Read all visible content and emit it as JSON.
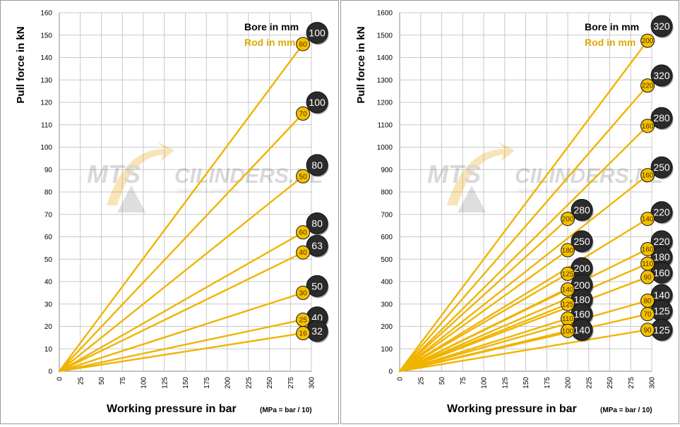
{
  "watermark": {
    "brand": "MTS",
    "name": "CILINDERS.NL",
    "tagline": "hydraulic & pneumatic"
  },
  "colors": {
    "line": "#f0b400",
    "rod_fill": "#f5c000",
    "rod_text": "#4a3200",
    "bore_fill": "#2b2b2b",
    "bore_text": "#ffffff",
    "grid": "#c8c8c8",
    "legend_rod": "#e0a800",
    "legend_bore": "#000000"
  },
  "chart_data": [
    {
      "type": "line",
      "ylabel": "Pull force in kN",
      "xlabel": "Working pressure in bar",
      "xnote": "(MPa = bar / 10)",
      "legend": {
        "bore": "Bore in mm",
        "rod": "Rod in mm"
      },
      "xlim": [
        0,
        300
      ],
      "ylim": [
        0,
        160
      ],
      "xticks": [
        0,
        25,
        50,
        75,
        100,
        125,
        150,
        175,
        200,
        225,
        250,
        275,
        300
      ],
      "yticks": [
        0,
        10,
        20,
        30,
        40,
        50,
        60,
        70,
        80,
        90,
        100,
        110,
        120,
        130,
        140,
        150,
        160
      ],
      "series": [
        {
          "bore": "100",
          "rod": "60",
          "x_end": 290,
          "y_end": 146,
          "bore_label_y": 151
        },
        {
          "bore": "100",
          "rod": "70",
          "x_end": 290,
          "y_end": 115,
          "bore_label_y": 120
        },
        {
          "bore": "80",
          "rod": "50",
          "x_end": 290,
          "y_end": 87,
          "bore_label_y": 92
        },
        {
          "bore": "80",
          "rod": "60",
          "x_end": 290,
          "y_end": 62,
          "bore_label_y": 66
        },
        {
          "bore": "63",
          "rod": "40",
          "x_end": 290,
          "y_end": 53,
          "bore_label_y": 56
        },
        {
          "bore": "50",
          "rod": "30",
          "x_end": 290,
          "y_end": 35,
          "bore_label_y": 38
        },
        {
          "bore": "40",
          "rod": "25",
          "x_end": 290,
          "y_end": 23,
          "bore_label_y": 24
        },
        {
          "bore": "32",
          "rod": "16",
          "x_end": 290,
          "y_end": 17,
          "bore_label_y": 18
        }
      ]
    },
    {
      "type": "line",
      "ylabel": "Pull force in kN",
      "xlabel": "Working pressure in bar",
      "xnote": "(MPa = bar / 10)",
      "legend": {
        "bore": "Bore in mm",
        "rod": "Rod in mm"
      },
      "xlim": [
        0,
        300
      ],
      "ylim": [
        0,
        1600
      ],
      "xticks": [
        0,
        25,
        50,
        75,
        100,
        125,
        150,
        175,
        200,
        225,
        250,
        275,
        300
      ],
      "yticks": [
        0,
        100,
        200,
        300,
        400,
        500,
        600,
        700,
        800,
        900,
        1000,
        1100,
        1200,
        1300,
        1400,
        1500,
        1600
      ],
      "series": [
        {
          "bore": "320",
          "rod": "200",
          "x_end": 295,
          "y_end": 1475,
          "bore_label_y": 1540
        },
        {
          "bore": "320",
          "rod": "220",
          "x_end": 295,
          "y_end": 1275,
          "bore_label_y": 1320
        },
        {
          "bore": "280",
          "rod": "160",
          "x_end": 295,
          "y_end": 1095,
          "bore_label_y": 1130
        },
        {
          "bore": "250",
          "rod": "160",
          "x_end": 295,
          "y_end": 875,
          "bore_label_y": 910
        },
        {
          "bore": "220",
          "rod": "140",
          "x_end": 295,
          "y_end": 680,
          "bore_label_y": 710
        },
        {
          "bore": "220",
          "rod": "160",
          "x_end": 295,
          "y_end": 545,
          "bore_label_y": 580
        },
        {
          "bore": "180",
          "rod": "110",
          "x_end": 295,
          "y_end": 480,
          "bore_label_y": 510
        },
        {
          "bore": "160",
          "rod": "90",
          "x_end": 295,
          "y_end": 420,
          "bore_label_y": 440
        },
        {
          "bore": "140",
          "rod": "80",
          "x_end": 295,
          "y_end": 315,
          "bore_label_y": 340
        },
        {
          "bore": "125",
          "rod": "70",
          "x_end": 295,
          "y_end": 255,
          "bore_label_y": 270
        },
        {
          "bore": "125",
          "rod": "90",
          "x_end": 295,
          "y_end": 185,
          "bore_label_y": 185
        },
        {
          "bore": "280",
          "rod": "200",
          "x_end": 200,
          "y_end": 680,
          "bore_label_y": 720
        },
        {
          "bore": "250",
          "rod": "180",
          "x_end": 200,
          "y_end": 540,
          "bore_label_y": 580
        },
        {
          "bore": "200",
          "rod": "125",
          "x_end": 200,
          "y_end": 435,
          "bore_label_y": 460
        },
        {
          "bore": "200",
          "rod": "140",
          "x_end": 200,
          "y_end": 365,
          "bore_label_y": 385
        },
        {
          "bore": "180",
          "rod": "125",
          "x_end": 200,
          "y_end": 300,
          "bore_label_y": 320
        },
        {
          "bore": "160",
          "rod": "110",
          "x_end": 200,
          "y_end": 235,
          "bore_label_y": 255
        },
        {
          "bore": "140",
          "rod": "100",
          "x_end": 200,
          "y_end": 180,
          "bore_label_y": 185
        }
      ]
    }
  ]
}
